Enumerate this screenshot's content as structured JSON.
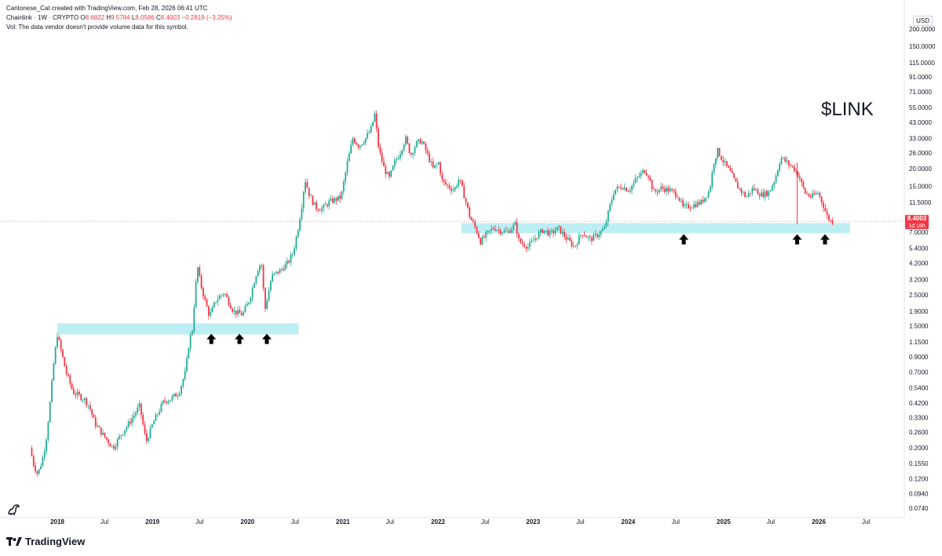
{
  "header": {
    "attribution": "Cantonese_Cat created with TradingView.com, Feb 28, 2026 06:41 UTC",
    "symbol": "Chainlink · 1W · CRYPTO",
    "o_label": "O",
    "o_value": "8.6822",
    "h_label": "H",
    "h_value": "9.5784",
    "l_label": "L",
    "l_value": "8.0586",
    "c_label": "C",
    "c_value": "8.4003 −0.2819 (−3.25%)",
    "volume_note": "Vol: The data vendor doesn't provide volume data for this symbol."
  },
  "currency": "USD",
  "annotation_title": "$LINK",
  "brand": "TradingView",
  "colors": {
    "up": "#22ab94",
    "down": "#f23645",
    "zone": "#b2ebf2",
    "price_line": "#f23645"
  },
  "chart_data": {
    "type": "candlestick",
    "y_scale": "log",
    "y_ticks": [
      "200.0000",
      "150.0000",
      "115.0000",
      "91.0000",
      "71.0000",
      "55.0000",
      "43.0000",
      "33.0000",
      "26.0000",
      "20.0000",
      "15.0000",
      "11.5000",
      "8.0000",
      "7.0000",
      "5.4000",
      "4.2000",
      "3.2000",
      "2.5000",
      "1.9000",
      "1.5000",
      "1.1500",
      "0.9000",
      "0.7000",
      "0.5400",
      "0.4200",
      "0.3300",
      "0.2600",
      "0.2000",
      "0.1550",
      "0.1200",
      "0.0940",
      "0.0740"
    ],
    "x_ticks": [
      "2018",
      "Jul",
      "2019",
      "Jul",
      "2020",
      "Jul",
      "2021",
      "Jul",
      "2022",
      "Jul",
      "2023",
      "Jul",
      "2024",
      "Jul",
      "2025",
      "Jul",
      "2026",
      "Jul"
    ],
    "x_tick_dates": [
      "2018-01-01",
      "2018-07-01",
      "2019-01-01",
      "2019-07-01",
      "2020-01-01",
      "2020-07-01",
      "2021-01-01",
      "2021-07-01",
      "2022-01-01",
      "2022-07-01",
      "2023-01-01",
      "2023-07-01",
      "2024-01-01",
      "2024-07-01",
      "2025-01-01",
      "2025-07-01",
      "2026-01-01",
      "2026-07-01"
    ],
    "last_price": {
      "value": "8.4003",
      "countdown": "1d 18h"
    },
    "support_zones": [
      {
        "start": "2018-01-01",
        "end": "2020-07-15",
        "low": 1.3,
        "high": 1.56
      },
      {
        "start": "2022-04-01",
        "end": "2026-05-01",
        "low": 6.9,
        "high": 8.15
      }
    ],
    "arrows": [
      {
        "date": "2019-08-15",
        "price": 1.2
      },
      {
        "date": "2019-12-01",
        "price": 1.2
      },
      {
        "date": "2020-03-15",
        "price": 1.2
      },
      {
        "date": "2024-08-01",
        "price": 6.2
      },
      {
        "date": "2025-10-10",
        "price": 6.2
      },
      {
        "date": "2026-01-25",
        "price": 6.2
      }
    ],
    "path_points": [
      [
        "2017-09-25",
        0.2
      ],
      [
        "2017-10-10",
        0.15
      ],
      [
        "2017-10-25",
        0.13
      ],
      [
        "2017-11-10",
        0.16
      ],
      [
        "2017-11-25",
        0.22
      ],
      [
        "2017-12-10",
        0.4
      ],
      [
        "2017-12-25",
        0.8
      ],
      [
        "2018-01-08",
        1.3
      ],
      [
        "2018-01-25",
        0.95
      ],
      [
        "2018-02-10",
        0.7
      ],
      [
        "2018-03-10",
        0.5
      ],
      [
        "2018-04-20",
        0.45
      ],
      [
        "2018-05-10",
        0.4
      ],
      [
        "2018-06-01",
        0.3
      ],
      [
        "2018-07-01",
        0.25
      ],
      [
        "2018-08-10",
        0.2
      ],
      [
        "2018-09-10",
        0.25
      ],
      [
        "2018-10-10",
        0.3
      ],
      [
        "2018-11-20",
        0.4
      ],
      [
        "2018-12-15",
        0.22
      ],
      [
        "2019-01-10",
        0.3
      ],
      [
        "2019-02-20",
        0.43
      ],
      [
        "2019-03-20",
        0.45
      ],
      [
        "2019-04-20",
        0.5
      ],
      [
        "2019-05-15",
        0.7
      ],
      [
        "2019-05-30",
        1.2
      ],
      [
        "2019-06-10",
        1.4
      ],
      [
        "2019-06-20",
        2.5
      ],
      [
        "2019-06-30",
        4.0
      ],
      [
        "2019-07-10",
        3.1
      ],
      [
        "2019-07-25",
        2.4
      ],
      [
        "2019-08-15",
        1.75
      ],
      [
        "2019-09-10",
        2.3
      ],
      [
        "2019-10-10",
        2.6
      ],
      [
        "2019-11-15",
        1.9
      ],
      [
        "2019-12-20",
        1.8
      ],
      [
        "2020-01-15",
        2.3
      ],
      [
        "2020-02-15",
        3.8
      ],
      [
        "2020-03-01",
        4.3
      ],
      [
        "2020-03-15",
        1.95
      ],
      [
        "2020-04-10",
        3.4
      ],
      [
        "2020-05-10",
        3.7
      ],
      [
        "2020-06-10",
        4.2
      ],
      [
        "2020-07-01",
        5.0
      ],
      [
        "2020-07-20",
        7.5
      ],
      [
        "2020-08-05",
        11.5
      ],
      [
        "2020-08-15",
        17.0
      ],
      [
        "2020-09-01",
        13.0
      ],
      [
        "2020-09-25",
        10.5
      ],
      [
        "2020-10-20",
        10.3
      ],
      [
        "2020-11-15",
        11.5
      ],
      [
        "2020-12-10",
        12.0
      ],
      [
        "2021-01-01",
        12.5
      ],
      [
        "2021-01-25",
        22.0
      ],
      [
        "2021-02-15",
        33.0
      ],
      [
        "2021-03-10",
        29.0
      ],
      [
        "2021-04-05",
        33.0
      ],
      [
        "2021-04-25",
        38.0
      ],
      [
        "2021-05-10",
        49.0
      ],
      [
        "2021-05-25",
        28.0
      ],
      [
        "2021-06-15",
        20.0
      ],
      [
        "2021-07-05",
        17.0
      ],
      [
        "2021-07-25",
        22.0
      ],
      [
        "2021-08-15",
        26.0
      ],
      [
        "2021-09-05",
        33.0
      ],
      [
        "2021-09-25",
        25.0
      ],
      [
        "2021-10-15",
        30.0
      ],
      [
        "2021-11-05",
        32.0
      ],
      [
        "2021-11-25",
        26.0
      ],
      [
        "2021-12-20",
        20.0
      ],
      [
        "2022-01-10",
        22.0
      ],
      [
        "2022-01-25",
        16.0
      ],
      [
        "2022-02-15",
        15.0
      ],
      [
        "2022-03-10",
        14.0
      ],
      [
        "2022-03-30",
        17.0
      ],
      [
        "2022-04-20",
        12.5
      ],
      [
        "2022-05-10",
        9.0
      ],
      [
        "2022-06-01",
        7.5
      ],
      [
        "2022-06-20",
        6.0
      ],
      [
        "2022-07-15",
        6.8
      ],
      [
        "2022-08-10",
        7.6
      ],
      [
        "2022-09-01",
        7.2
      ],
      [
        "2022-10-01",
        7.0
      ],
      [
        "2022-11-01",
        8.0
      ],
      [
        "2022-11-15",
        6.0
      ],
      [
        "2022-12-20",
        5.5
      ],
      [
        "2023-01-20",
        6.5
      ],
      [
        "2023-02-15",
        7.3
      ],
      [
        "2023-03-15",
        6.8
      ],
      [
        "2023-04-15",
        7.5
      ],
      [
        "2023-05-10",
        6.5
      ],
      [
        "2023-06-15",
        5.5
      ],
      [
        "2023-07-15",
        7.0
      ],
      [
        "2023-08-15",
        6.2
      ],
      [
        "2023-09-15",
        6.8
      ],
      [
        "2023-10-10",
        7.5
      ],
      [
        "2023-10-25",
        10.0
      ],
      [
        "2023-11-15",
        14.0
      ],
      [
        "2023-12-15",
        15.0
      ],
      [
        "2024-01-10",
        14.0
      ],
      [
        "2024-02-10",
        17.0
      ],
      [
        "2024-03-10",
        19.5
      ],
      [
        "2024-03-25",
        18.0
      ],
      [
        "2024-04-15",
        13.5
      ],
      [
        "2024-05-15",
        14.5
      ],
      [
        "2024-06-15",
        14.0
      ],
      [
        "2024-07-15",
        13.0
      ],
      [
        "2024-08-05",
        10.5
      ],
      [
        "2024-09-15",
        11.0
      ],
      [
        "2024-10-15",
        11.5
      ],
      [
        "2024-11-15",
        14.0
      ],
      [
        "2024-12-01",
        22.0
      ],
      [
        "2024-12-15",
        27.0
      ],
      [
        "2025-01-10",
        22.0
      ],
      [
        "2025-02-01",
        19.0
      ],
      [
        "2025-03-01",
        15.0
      ],
      [
        "2025-04-05",
        12.5
      ],
      [
        "2025-05-01",
        14.5
      ],
      [
        "2025-06-01",
        13.0
      ],
      [
        "2025-07-01",
        13.5
      ],
      [
        "2025-07-25",
        17.0
      ],
      [
        "2025-08-15",
        24.0
      ],
      [
        "2025-09-10",
        22.0
      ],
      [
        "2025-10-05",
        20.0
      ],
      [
        "2025-10-25",
        17.5
      ],
      [
        "2025-11-15",
        13.5
      ],
      [
        "2025-12-10",
        12.5
      ],
      [
        "2026-01-05",
        13.5
      ],
      [
        "2026-01-25",
        11.0
      ],
      [
        "2026-02-10",
        9.0
      ],
      [
        "2026-02-24",
        8.4
      ]
    ],
    "spikes": [
      {
        "date": "2025-10-10",
        "low": 8.0
      }
    ]
  }
}
